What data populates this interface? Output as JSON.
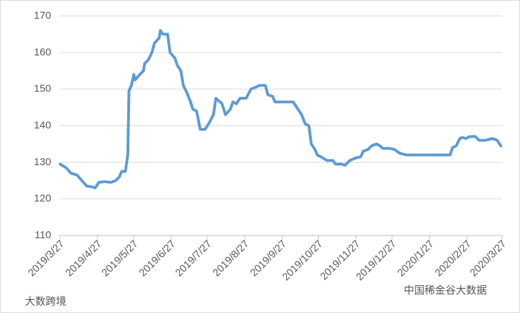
{
  "chart_data": {
    "type": "line",
    "x": [
      "2019/3/27",
      "2019/4/1",
      "2019/4/5",
      "2019/4/10",
      "2019/4/14",
      "2019/4/18",
      "2019/4/22",
      "2019/4/25",
      "2019/4/28",
      "2019/5/3",
      "2019/5/8",
      "2019/5/12",
      "2019/5/15",
      "2019/5/17",
      "2019/5/20",
      "2019/5/22",
      "2019/5/23",
      "2019/5/25",
      "2019/5/27",
      "2019/5/28",
      "2019/6/1",
      "2019/6/4",
      "2019/6/5",
      "2019/6/8",
      "2019/6/11",
      "2019/6/13",
      "2019/6/17",
      "2019/6/18",
      "2019/6/20",
      "2019/6/24",
      "2019/6/26",
      "2019/6/30",
      "2019/7/2",
      "2019/7/5",
      "2019/7/7",
      "2019/7/10",
      "2019/7/13",
      "2019/7/15",
      "2019/7/18",
      "2019/7/21",
      "2019/7/25",
      "2019/7/28",
      "2019/8/1",
      "2019/8/3",
      "2019/8/8",
      "2019/8/11",
      "2019/8/15",
      "2019/8/17",
      "2019/8/20",
      "2019/8/23",
      "2019/8/28",
      "2019/9/1",
      "2019/9/5",
      "2019/9/8",
      "2019/9/13",
      "2019/9/15",
      "2019/9/19",
      "2019/9/21",
      "2019/9/25",
      "2019/10/1",
      "2019/10/6",
      "2019/10/9",
      "2019/10/13",
      "2019/10/16",
      "2019/10/19",
      "2019/10/21",
      "2019/10/24",
      "2019/10/26",
      "2019/10/29",
      "2019/11/3",
      "2019/11/8",
      "2019/11/10",
      "2019/11/15",
      "2019/11/18",
      "2019/11/22",
      "2019/11/27",
      "2019/12/1",
      "2019/12/3",
      "2019/12/7",
      "2019/12/10",
      "2019/12/14",
      "2019/12/17",
      "2019/12/19",
      "2019/12/25",
      "2019/12/29",
      "2020/1/2",
      "2020/1/8",
      "2020/1/13",
      "2020/1/27",
      "2020/2/10",
      "2020/2/13",
      "2020/2/15",
      "2020/2/18",
      "2020/2/21",
      "2020/2/23",
      "2020/2/26",
      "2020/2/29",
      "2020/3/5",
      "2020/3/8",
      "2020/3/13",
      "2020/3/19",
      "2020/3/23",
      "2020/3/26"
    ],
    "values": [
      129.5,
      128.5,
      127,
      126.5,
      125,
      123.5,
      123.3,
      123,
      124.5,
      124.7,
      124.5,
      125,
      126,
      127.5,
      127.5,
      132,
      149.5,
      151,
      154,
      152.5,
      154,
      155,
      157,
      158,
      160,
      162.5,
      164,
      166,
      165,
      165,
      160,
      158.5,
      156.5,
      155,
      151,
      149,
      146.5,
      144.5,
      144,
      139,
      139,
      140.5,
      143,
      147.5,
      146,
      143,
      144.5,
      146.5,
      146,
      147.5,
      147.5,
      150,
      150.5,
      151,
      151,
      148.5,
      148,
      146.5,
      146.5,
      146.5,
      146.5,
      145,
      143,
      140.5,
      140,
      135,
      133.5,
      132,
      131.5,
      130.5,
      130.5,
      129.5,
      129.5,
      129.2,
      130.5,
      131.2,
      131.5,
      133,
      133.5,
      134.5,
      135,
      134.5,
      133.8,
      133.8,
      133.5,
      132.5,
      132,
      132,
      132,
      132,
      132,
      134,
      134.5,
      136.5,
      136.8,
      136.5,
      137,
      137,
      136,
      136,
      136.5,
      136,
      134.5
    ],
    "color": "#5b9bd5",
    "xlim": [
      "2019/3/27",
      "2020/3/27"
    ],
    "xticks": [
      "2019/3/27",
      "2019/4/27",
      "2019/5/27",
      "2019/6/27",
      "2019/7/27",
      "2019/8/27",
      "2019/9/27",
      "2019/10/27",
      "2019/11/27",
      "2019/12/27",
      "2020/1/27",
      "2020/2/27",
      "2020/3/27"
    ],
    "ylim": [
      110,
      170
    ],
    "yticks": [
      110,
      120,
      130,
      140,
      150,
      160,
      170
    ],
    "grid": true,
    "watermarks": [
      "大数跨境",
      "中国稀金谷大数据"
    ]
  }
}
